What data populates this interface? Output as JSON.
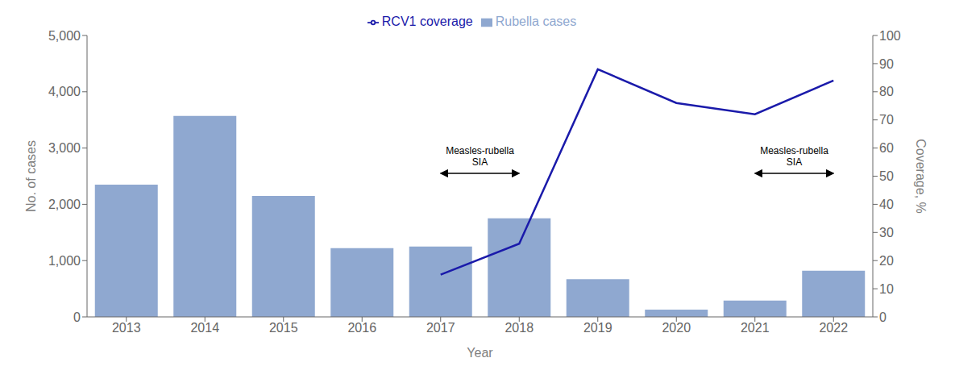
{
  "chart_data": {
    "type": "bar",
    "categories": [
      "2013",
      "2014",
      "2015",
      "2016",
      "2017",
      "2018",
      "2019",
      "2020",
      "2021",
      "2022"
    ],
    "series": [
      {
        "name": "Rubella cases",
        "type": "bar",
        "color": "#8fa8d0",
        "values": [
          2350,
          3570,
          2150,
          1220,
          1250,
          1750,
          670,
          130,
          290,
          820
        ]
      },
      {
        "name": "RCV1 coverage",
        "type": "line",
        "color": "#1a1aaa",
        "axis": "y2",
        "values": [
          null,
          null,
          null,
          null,
          15,
          26,
          88,
          76,
          72,
          84
        ]
      }
    ],
    "xlabel": "Year",
    "ylabel": "No. of cases",
    "y2label": "Coverage, %",
    "ylim": [
      0,
      5000
    ],
    "yticks": [
      0,
      {
        "value": 1000,
        "label": "1,000"
      },
      {
        "value": 2000,
        "label": "2,000"
      },
      {
        "value": 3000,
        "label": "3,000"
      },
      {
        "value": 4000,
        "label": "4,000"
      },
      {
        "value": 5000,
        "label": "5,000"
      }
    ],
    "y2lim": [
      0,
      100
    ],
    "y2ticks": [
      0,
      10,
      20,
      30,
      40,
      50,
      60,
      70,
      80,
      90,
      100
    ],
    "grid": false,
    "legend": "top",
    "annotations": [
      {
        "text": "Measles-rubella\nSIA",
        "x": [
          "2017",
          "2018"
        ]
      },
      {
        "text": "Measles-rubella\nSIA",
        "x": [
          "2021",
          "2022"
        ]
      }
    ]
  }
}
